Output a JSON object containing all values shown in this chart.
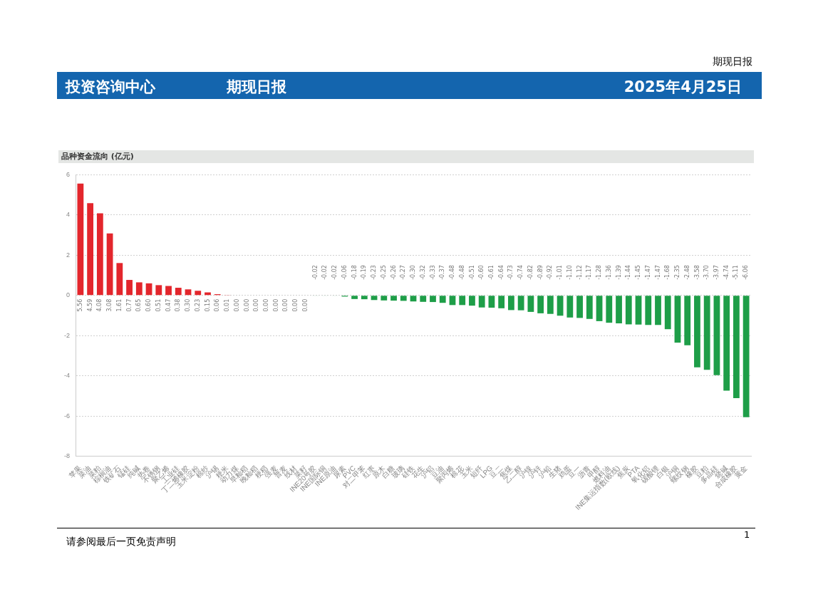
{
  "chart_data": {
    "type": "bar",
    "title": "品种资金流向 (亿元)",
    "annotations": [
      "期现日报",
      "投资咨询中心",
      "期现日报",
      "2025年4月25日",
      "请参阅最后一页免责声明",
      "1"
    ],
    "categories": [
      "苹果",
      "菜油",
      "菜粕",
      "棕榈油",
      "铁矿石",
      "锰硅",
      "纯碱",
      "热卷",
      "不锈钢",
      "聚乙烯",
      "工业硅",
      "丁二烯橡胶",
      "玉米淀粉",
      "棉纱",
      "沪锡",
      "粳米",
      "动力煤",
      "早籼稻",
      "晚籼稻",
      "粳稻",
      "强麦",
      "普麦",
      "线材",
      "菜籽",
      "INE20号胶",
      "INE国际铜",
      "INE原油",
      "尿素",
      "PVC",
      "对二甲苯",
      "红枣",
      "原木",
      "白糖",
      "玻璃",
      "硅铁",
      "花生",
      "沪铝",
      "豆油",
      "聚丙烯",
      "棉花",
      "玉米",
      "短纤",
      "LPG",
      "豆二",
      "焦煤",
      "乙二醇",
      "沪镍",
      "沪锌",
      "沪铅",
      "生猪",
      "鸡蛋",
      "豆一",
      "沥青",
      "甲醇",
      "燃料油",
      "INE集运指数(欧线)",
      "焦炭",
      "PTA",
      "氧化铝",
      "碳酸锂",
      "白银",
      "沪铜",
      "螺纹钢",
      "橡胶",
      "豆粕",
      "多晶硅",
      "烧碱",
      "合成橡胶",
      "黄金"
    ],
    "values": [
      5.56,
      4.59,
      4.08,
      3.08,
      1.61,
      0.77,
      0.65,
      0.6,
      0.51,
      0.47,
      0.38,
      0.3,
      0.23,
      0.15,
      0.06,
      0.01,
      0.0,
      0.0,
      0.0,
      0.0,
      0.0,
      0.0,
      0.0,
      0.0,
      -0.02,
      -0.02,
      -0.02,
      -0.06,
      -0.18,
      -0.19,
      -0.23,
      -0.25,
      -0.26,
      -0.27,
      -0.3,
      -0.32,
      -0.33,
      -0.37,
      -0.48,
      -0.48,
      -0.51,
      -0.6,
      -0.61,
      -0.64,
      -0.73,
      -0.74,
      -0.82,
      -0.89,
      -0.92,
      -1.01,
      -1.1,
      -1.12,
      -1.17,
      -1.28,
      -1.36,
      -1.39,
      -1.44,
      -1.45,
      -1.47,
      -1.47,
      -1.68,
      -2.35,
      -2.48,
      -3.58,
      -3.7,
      -3.97,
      -4.74,
      -5.11,
      -6.06
    ],
    "colors": [
      "#e3262c",
      "#e3262c",
      "#e3262c",
      "#e3262c",
      "#e3262c",
      "#e3262c",
      "#e3262c",
      "#e3262c",
      "#e3262c",
      "#e3262c",
      "#e3262c",
      "#e3262c",
      "#e3262c",
      "#e3262c",
      "#e3262c",
      "#e3262c",
      "#e3262c",
      "#e3262c",
      "#e3262c",
      "#e3262c",
      "#e3262c",
      "#e3262c",
      "#e3262c",
      "#e3262c",
      "#1e9e48",
      "#1e9e48",
      "#1e9e48",
      "#1e9e48",
      "#1e9e48",
      "#1e9e48",
      "#1e9e48",
      "#1e9e48",
      "#1e9e48",
      "#1e9e48",
      "#1e9e48",
      "#1e9e48",
      "#1e9e48",
      "#1e9e48",
      "#1e9e48",
      "#1e9e48",
      "#1e9e48",
      "#1e9e48",
      "#1e9e48",
      "#1e9e48",
      "#1e9e48",
      "#1e9e48",
      "#1e9e48",
      "#1e9e48",
      "#1e9e48",
      "#1e9e48",
      "#1e9e48",
      "#1e9e48",
      "#1e9e48",
      "#1e9e48",
      "#1e9e48",
      "#1e9e48",
      "#1e9e48",
      "#1e9e48",
      "#1e9e48",
      "#1e9e48",
      "#1e9e48",
      "#1e9e48",
      "#1e9e48",
      "#1e9e48",
      "#1e9e48",
      "#1e9e48",
      "#1e9e48",
      "#1e9e48",
      "#1e9e48"
    ],
    "value_labels": [
      "5.56",
      "4.59",
      "4.08",
      "3.08",
      "1.61",
      "0.77",
      "0.65",
      "0.60",
      "0.51",
      "0.47",
      "0.38",
      "0.30",
      "0.23",
      "0.15",
      "0.06",
      "0.01",
      "0.00",
      "0.00",
      "0.00",
      "0.00",
      "0.00",
      "0.00",
      "0.00",
      "0.00",
      "-0.02",
      "-0.02",
      "-0.02",
      "-0.06",
      "-0.18",
      "-0.19",
      "-0.23",
      "-0.25",
      "-0.26",
      "-0.27",
      "-0.30",
      "-0.32",
      "-0.33",
      "-0.37",
      "-0.48",
      "-0.48",
      "-0.51",
      "-0.60",
      "-0.61",
      "-0.64",
      "-0.73",
      "-0.74",
      "-0.82",
      "-0.89",
      "-0.92",
      "-1.01",
      "-1.10",
      "-1.12",
      "-1.17",
      "-1.28",
      "-1.36",
      "-1.39",
      "-1.44",
      "-1.45",
      "-1.47",
      "-1.47",
      "-1.68",
      "-2.35",
      "-2.48",
      "-3.58",
      "-3.70",
      "-3.97",
      "-4.74",
      "-5.11",
      "-6.06"
    ],
    "ylim": [
      -8,
      6
    ],
    "yticks": [
      -8,
      -6,
      -4,
      -2,
      0,
      2,
      4,
      6
    ],
    "grid": "y",
    "legend": false
  }
}
